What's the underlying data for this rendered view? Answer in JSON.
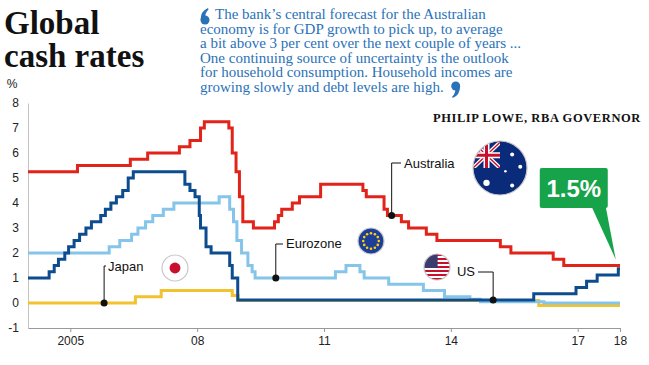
{
  "chart_data": {
    "type": "line",
    "title": [
      "Global",
      "cash rates"
    ],
    "subtitle": [
      "The bank’s central forecast for the Australian",
      "economy is for GDP growth to pick up, to average",
      "a bit above 3 per cent over the next couple of years ...",
      "One continuing source of uncertainty is the outlook",
      "for household consumption. Household incomes are",
      "growing slowly and debt levels are high."
    ],
    "source": "PHILIP LOWE, RBA GOVERNOR",
    "y_label": "%",
    "line_style": "step",
    "grid": false,
    "xlim": [
      2004,
      2018
    ],
    "xticks": [
      2005,
      {
        "value": 2008,
        "label": "08"
      },
      {
        "value": 2011,
        "label": "11"
      },
      {
        "value": 2014,
        "label": "14"
      },
      {
        "value": 2017,
        "label": "17"
      },
      {
        "value": 2018,
        "label": "18"
      }
    ],
    "ylim": [
      -1,
      8
    ],
    "yticks": [
      -1,
      0,
      1,
      2,
      3,
      4,
      5,
      6,
      7,
      8
    ],
    "series": [
      {
        "name": "Australia",
        "color": "#e2231a",
        "x": [
          2004,
          2005.17,
          2006.42,
          2006.83,
          2007.58,
          2007.83,
          2008.08,
          2008.17,
          2008.75,
          2008.83,
          2008.92,
          2009.0,
          2009.08,
          2009.33,
          2009.83,
          2009.92,
          2010.0,
          2010.25,
          2010.42,
          2010.92,
          2011.92,
          2012.0,
          2012.42,
          2012.5,
          2012.83,
          2013.0,
          2013.42,
          2013.67,
          2015.17,
          2015.42,
          2016.42,
          2016.67,
          2018
        ],
        "values": [
          5.25,
          5.5,
          5.75,
          6.0,
          6.25,
          6.5,
          7.0,
          7.25,
          7.0,
          6.0,
          5.25,
          4.25,
          3.25,
          3.0,
          3.25,
          3.5,
          3.75,
          4.0,
          4.25,
          4.75,
          4.5,
          4.25,
          3.75,
          3.5,
          3.25,
          3.0,
          2.75,
          2.5,
          2.25,
          2.0,
          1.75,
          1.5,
          1.5
        ]
      },
      {
        "name": "US",
        "color": "#0d4c8e",
        "x": [
          2004,
          2004.5,
          2004.62,
          2004.72,
          2004.87,
          2004.96,
          2005.09,
          2005.22,
          2005.37,
          2005.5,
          2005.72,
          2005.83,
          2005.96,
          2006.09,
          2006.24,
          2006.37,
          2006.49,
          2007.71,
          2007.83,
          2007.95,
          2008.05,
          2008.08,
          2008.21,
          2008.33,
          2008.77,
          2008.83,
          2008.96,
          2015.96,
          2016.96,
          2017.21,
          2017.46,
          2017.96,
          2018
        ],
        "values": [
          1.0,
          1.25,
          1.5,
          1.75,
          2.0,
          2.25,
          2.5,
          2.75,
          3.0,
          3.25,
          3.5,
          3.75,
          4.0,
          4.25,
          4.5,
          5.0,
          5.25,
          4.75,
          4.5,
          4.25,
          3.5,
          3.0,
          2.25,
          2.0,
          1.5,
          1.0,
          0.125,
          0.375,
          0.625,
          0.875,
          1.125,
          1.375,
          1.375
        ]
      },
      {
        "name": "Eurozone",
        "color": "#86c5ea",
        "x": [
          2004,
          2005.92,
          2006.17,
          2006.45,
          2006.6,
          2006.78,
          2006.95,
          2007.2,
          2007.45,
          2008.52,
          2008.77,
          2008.86,
          2008.94,
          2009.05,
          2009.2,
          2009.3,
          2009.37,
          2011.27,
          2011.52,
          2011.85,
          2011.95,
          2012.53,
          2013.35,
          2013.85,
          2014.45,
          2014.7,
          2016.2,
          2018
        ],
        "values": [
          2.0,
          2.25,
          2.5,
          2.75,
          3.0,
          3.25,
          3.5,
          3.75,
          4.0,
          4.25,
          3.75,
          3.25,
          2.5,
          2.0,
          1.5,
          1.25,
          1.0,
          1.25,
          1.5,
          1.25,
          1.0,
          0.75,
          0.5,
          0.25,
          0.15,
          0.05,
          0.0,
          0.0
        ]
      },
      {
        "name": "Japan",
        "color": "#f2c230",
        "x": [
          2004,
          2006.54,
          2007.15,
          2008.83,
          2008.97,
          2016.08,
          2018
        ],
        "values": [
          0.0,
          0.25,
          0.5,
          0.3,
          0.1,
          -0.1,
          -0.1
        ]
      }
    ],
    "annotations": [
      {
        "label": "1.5%",
        "x": 2017.9,
        "value": 1.5
      }
    ]
  }
}
